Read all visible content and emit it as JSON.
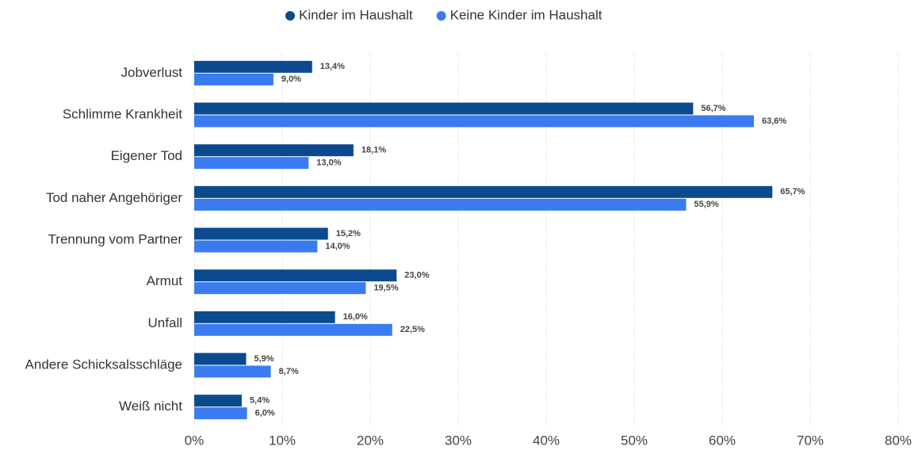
{
  "chart_data": {
    "type": "bar",
    "orientation": "horizontal",
    "categories": [
      "Jobverlust",
      "Schlimme Krankheit",
      "Eigener Tod",
      "Tod naher Angehöriger",
      "Trennung vom Partner",
      "Armut",
      "Unfall",
      "Andere Schicksalsschläge",
      "Weiß nicht"
    ],
    "series": [
      {
        "name": "Kinder im Haushalt",
        "color": "#0b4a8f",
        "values": [
          13.4,
          56.7,
          18.1,
          65.7,
          15.2,
          23.0,
          16.0,
          5.9,
          5.4
        ],
        "value_labels": [
          "13,4%",
          "56,7%",
          "18,1%",
          "65,7%",
          "15,2%",
          "23,0%",
          "16,0%",
          "5,9%",
          "5,4%"
        ]
      },
      {
        "name": "Keine Kinder im Haushalt",
        "color": "#3a7cf0",
        "values": [
          9.0,
          63.6,
          13.0,
          55.9,
          14.0,
          19.5,
          22.5,
          8.7,
          6.0
        ],
        "value_labels": [
          "9,0%",
          "63,6%",
          "13,0%",
          "55,9%",
          "14,0%",
          "19,5%",
          "22,5%",
          "8,7%",
          "6,0%"
        ]
      }
    ],
    "xlim": [
      0,
      80
    ],
    "xticks": [
      {
        "value": 0,
        "label": "0%"
      },
      {
        "value": 10,
        "label": "10%"
      },
      {
        "value": 20,
        "label": "20%"
      },
      {
        "value": 30,
        "label": "30%"
      },
      {
        "value": 40,
        "label": "40%"
      },
      {
        "value": 50,
        "label": "50%"
      },
      {
        "value": 60,
        "label": "60%"
      },
      {
        "value": 70,
        "label": "70%"
      },
      {
        "value": 80,
        "label": "80%"
      }
    ],
    "grid": true,
    "legend": "top"
  }
}
